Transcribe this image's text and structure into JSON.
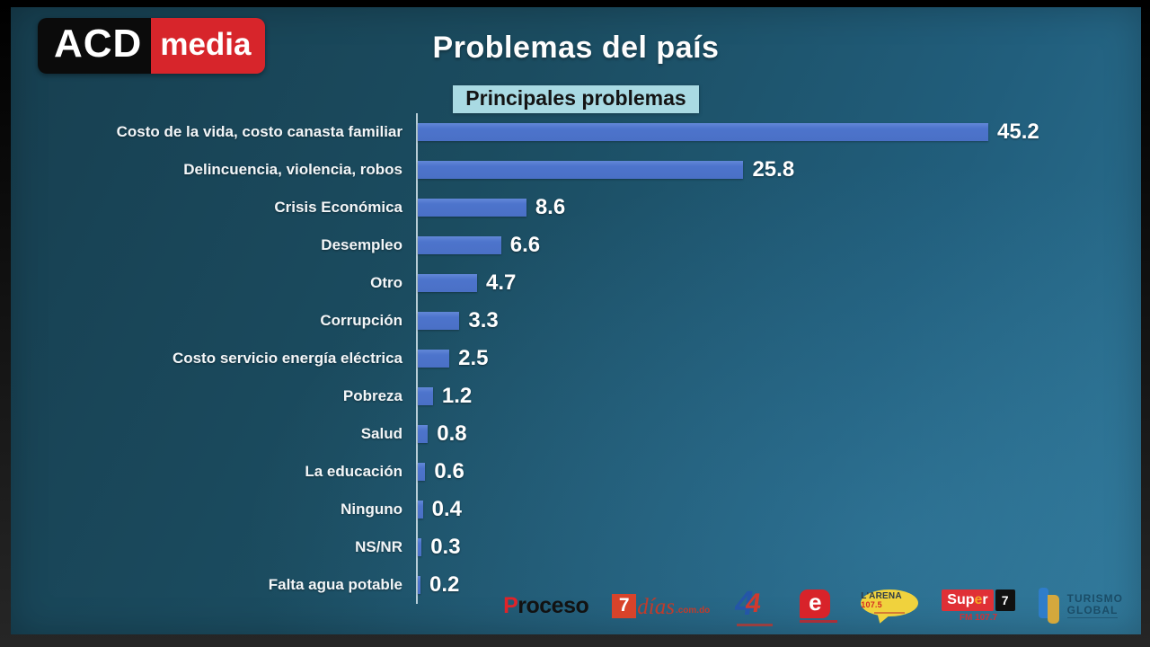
{
  "header": {
    "logo": {
      "part_black": "ACD",
      "part_red": "media"
    },
    "title": "Problemas del país",
    "subtitle": "Principales problemas"
  },
  "chart_data": {
    "type": "bar",
    "orientation": "horizontal",
    "title": "Problemas del país",
    "subtitle": "Principales problemas",
    "categories": [
      "Costo de la vida, costo canasta familiar",
      "Delincuencia, violencia, robos",
      "Crisis Económica",
      "Desempleo",
      "Otro",
      "Corrupción",
      "Costo servicio energía eléctrica",
      "Pobreza",
      "Salud",
      "La educación",
      "Ninguno",
      "NS/NR",
      "Falta agua potable"
    ],
    "values": [
      45.2,
      25.8,
      8.6,
      6.6,
      4.7,
      3.3,
      2.5,
      1.2,
      0.8,
      0.6,
      0.4,
      0.3,
      0.2
    ],
    "xlim": [
      0,
      47
    ],
    "grid": false,
    "legend": false,
    "value_labels_shown": true,
    "bar_color": "#4d74cc",
    "axis_line_color": "#e0eef4"
  },
  "footer": {
    "logos": [
      {
        "name": "proceso",
        "initial": "P",
        "rest": "roceso"
      },
      {
        "name": "7dias",
        "seven": "7",
        "word": "días",
        "suffix": ".com.do"
      },
      {
        "name": "canal4",
        "digit": "4"
      },
      {
        "name": "e-logo",
        "letter": "e"
      },
      {
        "name": "la-arena",
        "word": "L'ARENA",
        "freq": "107.5"
      },
      {
        "name": "super7",
        "word_a": "Sup",
        "word_b": "e",
        "word_c": "r",
        "digit": "7",
        "freq": "FM 107.7"
      },
      {
        "name": "turismo-global",
        "line1": "TURISMO",
        "line2": "GLOBAL"
      }
    ]
  },
  "colors": {
    "bar": "#4d74cc",
    "subtitle_bg": "#a9dae3",
    "logo_black": "#0b0b0b",
    "logo_red": "#d7252b",
    "background_top_left": "#173f50",
    "background_bottom_right": "#2d7495"
  }
}
